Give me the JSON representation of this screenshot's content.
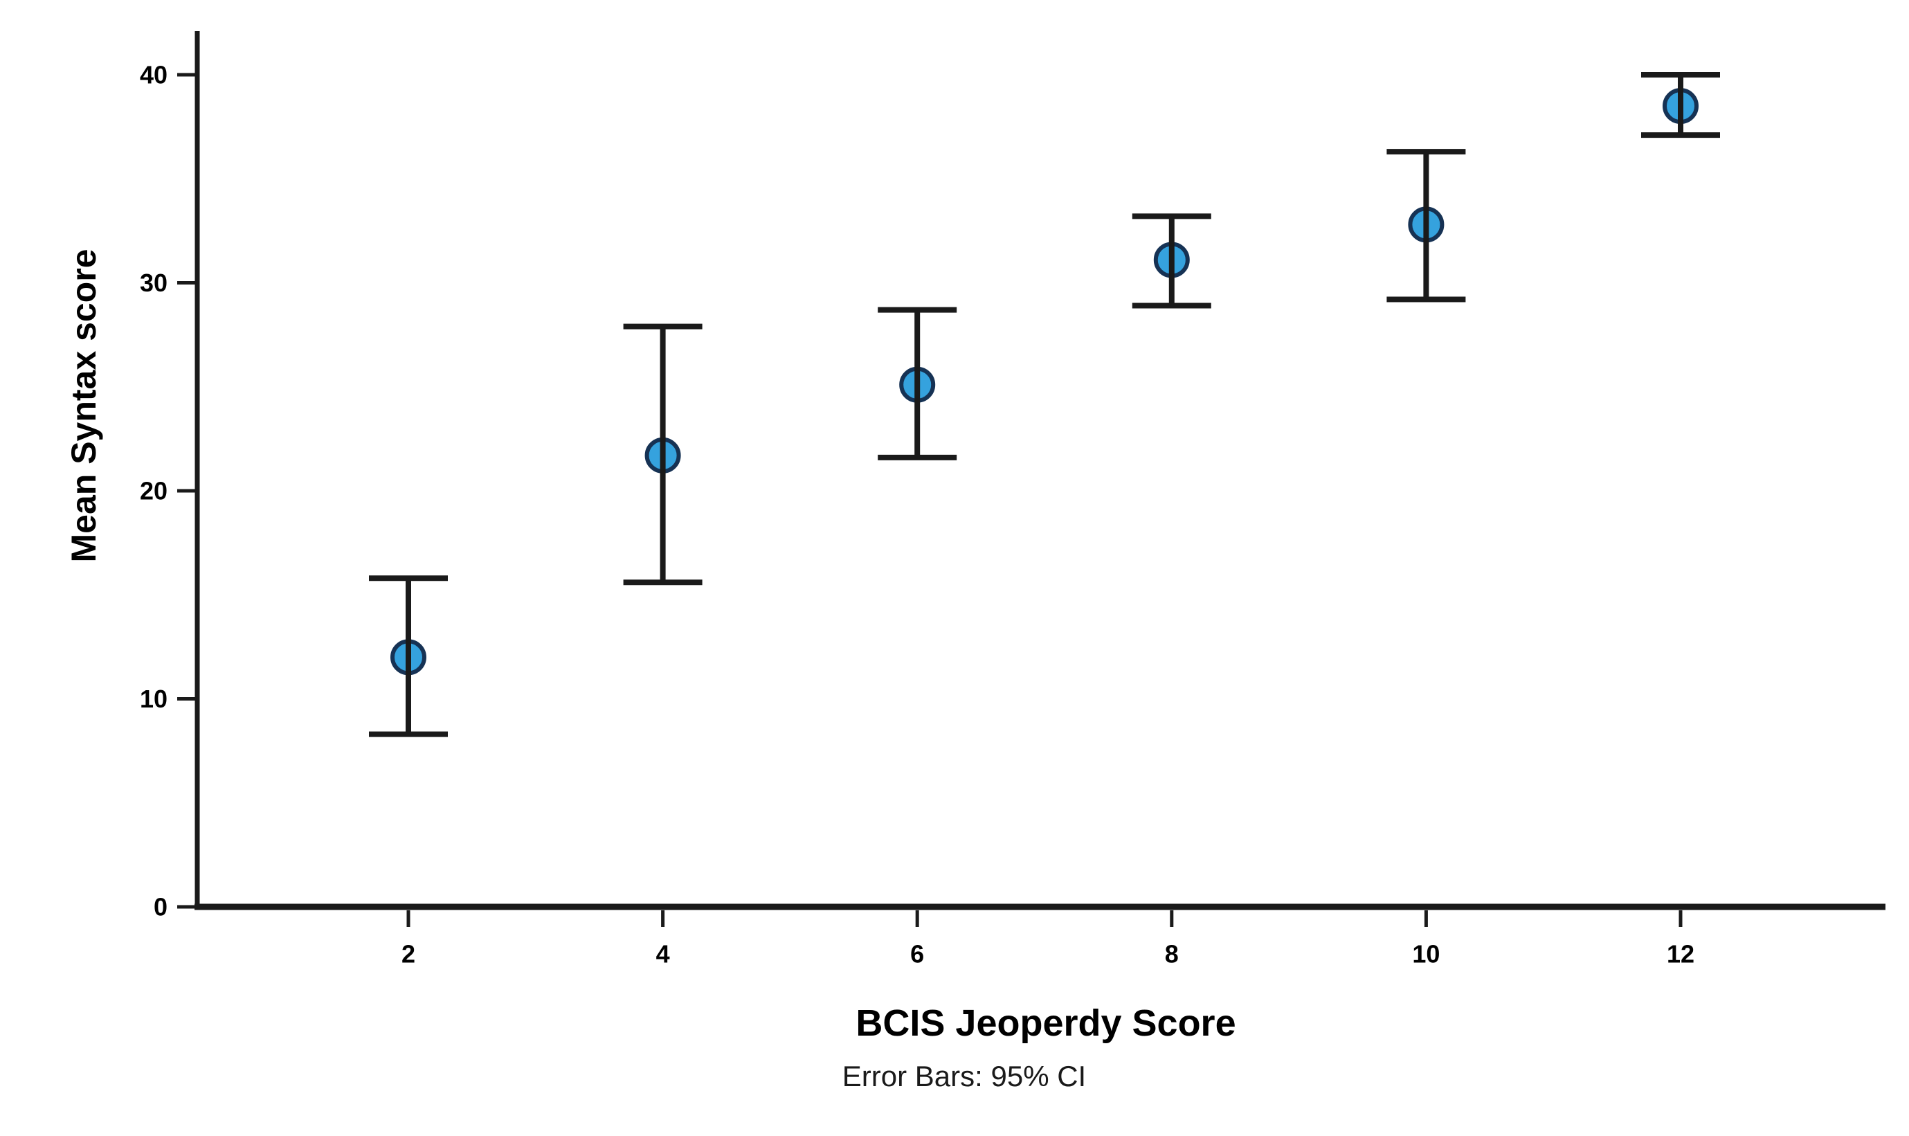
{
  "chart_data": {
    "type": "scatter",
    "subtype": "errorbar",
    "title": "",
    "xlabel": "BCIS Jeoperdy Score",
    "ylabel": "Mean Syntax score",
    "footnote": "Error Bars: 95% CI",
    "categories": [
      2,
      4,
      6,
      8,
      10,
      12
    ],
    "series": [
      {
        "name": "Mean Syntax score",
        "means": [
          12.0,
          21.7,
          25.1,
          31.1,
          32.8,
          38.5
        ],
        "ci_low": [
          8.3,
          15.6,
          21.6,
          28.9,
          29.2,
          37.1
        ],
        "ci_high": [
          15.8,
          27.9,
          28.7,
          33.2,
          36.3,
          40.0
        ]
      }
    ],
    "yticks": [
      0,
      10,
      20,
      30,
      40
    ],
    "ylim": [
      0,
      42
    ],
    "xlim_note": "categorical positions, labels 2-12 step 2",
    "grid": false,
    "legend": null,
    "colors": {
      "marker_fill": "#35A2DE",
      "marker_stroke": "#163254",
      "line": "#1a1a1a",
      "text": "#000000",
      "background": "#FFFFFF"
    }
  }
}
